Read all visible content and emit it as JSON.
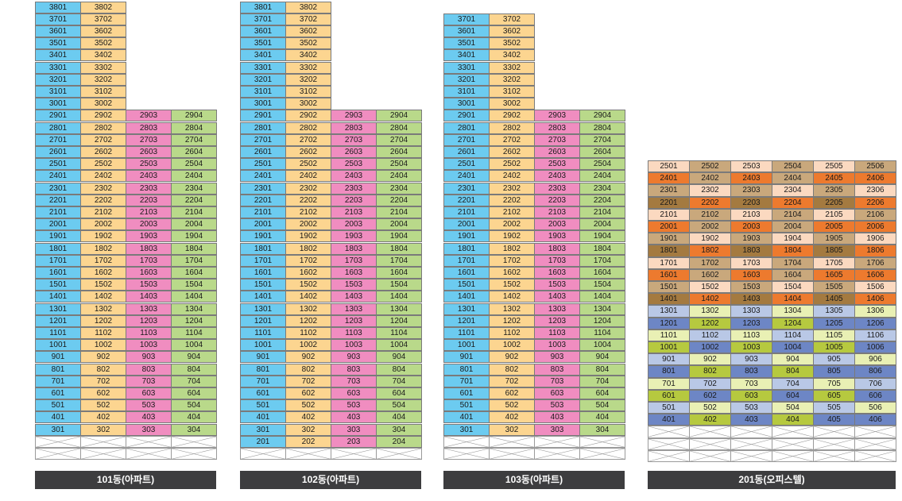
{
  "palette": {
    "apt": {
      "1": "#6ccbf0",
      "2": "#fcd590",
      "3": "#f08dc0",
      "4": "#b9d98a"
    },
    "office": {
      "orange_dark": "#ed7a2e",
      "tan": "#c9a87c",
      "peach": "#fbd9c0",
      "brown": "#a47a40",
      "blue_light": "#b9c8e6",
      "blue_dark": "#6d86c5",
      "lime_light": "#e9f0b4",
      "lime": "#b6c93f"
    },
    "label_bg": "#3d3d3f"
  },
  "buildings": [
    {
      "name": "101동(아파트)",
      "tower_top": 38,
      "tower_cols": 2,
      "wide_top": 29,
      "wide_cols": 4,
      "bottom": 3,
      "x_rows": 2
    },
    {
      "name": "102동(아파트)",
      "tower_top": 38,
      "tower_cols": 2,
      "wide_top": 29,
      "wide_cols": 4,
      "bottom": 2,
      "x_rows": 1
    },
    {
      "name": "103동(아파트)",
      "tower_top": 37,
      "tower_cols": 2,
      "wide_top": 29,
      "wide_cols": 4,
      "bottom": 3,
      "x_rows": 2
    }
  ],
  "office": {
    "name": "201동(오피스텔)",
    "top": 25,
    "bottom": 4,
    "cols": 6,
    "x_rows": 3,
    "floor_patterns": {
      "25": [
        "peach",
        "tan",
        "peach",
        "tan",
        "peach",
        "tan"
      ],
      "24": [
        "orange_dark",
        "tan",
        "orange_dark",
        "tan",
        "orange_dark",
        "orange_dark"
      ],
      "23": [
        "tan",
        "peach",
        "tan",
        "peach",
        "tan",
        "peach"
      ],
      "22": [
        "brown",
        "orange_dark",
        "brown",
        "orange_dark",
        "brown",
        "orange_dark"
      ],
      "21": [
        "peach",
        "tan",
        "peach",
        "tan",
        "peach",
        "tan"
      ],
      "20": [
        "orange_dark",
        "tan",
        "orange_dark",
        "tan",
        "orange_dark",
        "orange_dark"
      ],
      "19": [
        "tan",
        "peach",
        "tan",
        "peach",
        "tan",
        "peach"
      ],
      "18": [
        "brown",
        "orange_dark",
        "brown",
        "orange_dark",
        "brown",
        "orange_dark"
      ],
      "17": [
        "peach",
        "tan",
        "peach",
        "tan",
        "peach",
        "tan"
      ],
      "16": [
        "orange_dark",
        "tan",
        "orange_dark",
        "tan",
        "orange_dark",
        "orange_dark"
      ],
      "15": [
        "tan",
        "peach",
        "tan",
        "peach",
        "tan",
        "peach"
      ],
      "14": [
        "brown",
        "orange_dark",
        "brown",
        "orange_dark",
        "brown",
        "orange_dark"
      ],
      "13": [
        "blue_light",
        "lime_light",
        "blue_light",
        "lime_light",
        "blue_light",
        "lime_light"
      ],
      "12": [
        "blue_dark",
        "lime",
        "blue_dark",
        "lime",
        "blue_dark",
        "blue_dark"
      ],
      "11": [
        "lime_light",
        "blue_light",
        "lime_light",
        "blue_light",
        "lime_light",
        "blue_light"
      ],
      "10": [
        "lime",
        "blue_dark",
        "lime",
        "blue_dark",
        "lime",
        "blue_dark"
      ],
      "9": [
        "blue_light",
        "lime_light",
        "blue_light",
        "lime_light",
        "blue_light",
        "lime_light"
      ],
      "8": [
        "blue_dark",
        "lime",
        "blue_dark",
        "lime",
        "blue_dark",
        "blue_dark"
      ],
      "7": [
        "lime_light",
        "blue_light",
        "lime_light",
        "blue_light",
        "lime_light",
        "blue_light"
      ],
      "6": [
        "lime",
        "blue_dark",
        "lime",
        "blue_dark",
        "lime",
        "blue_dark"
      ],
      "5": [
        "blue_light",
        "lime_light",
        "blue_light",
        "lime_light",
        "blue_light",
        "lime_light"
      ],
      "4": [
        "blue_dark",
        "lime",
        "blue_dark",
        "lime",
        "blue_dark",
        "blue_dark"
      ]
    }
  }
}
